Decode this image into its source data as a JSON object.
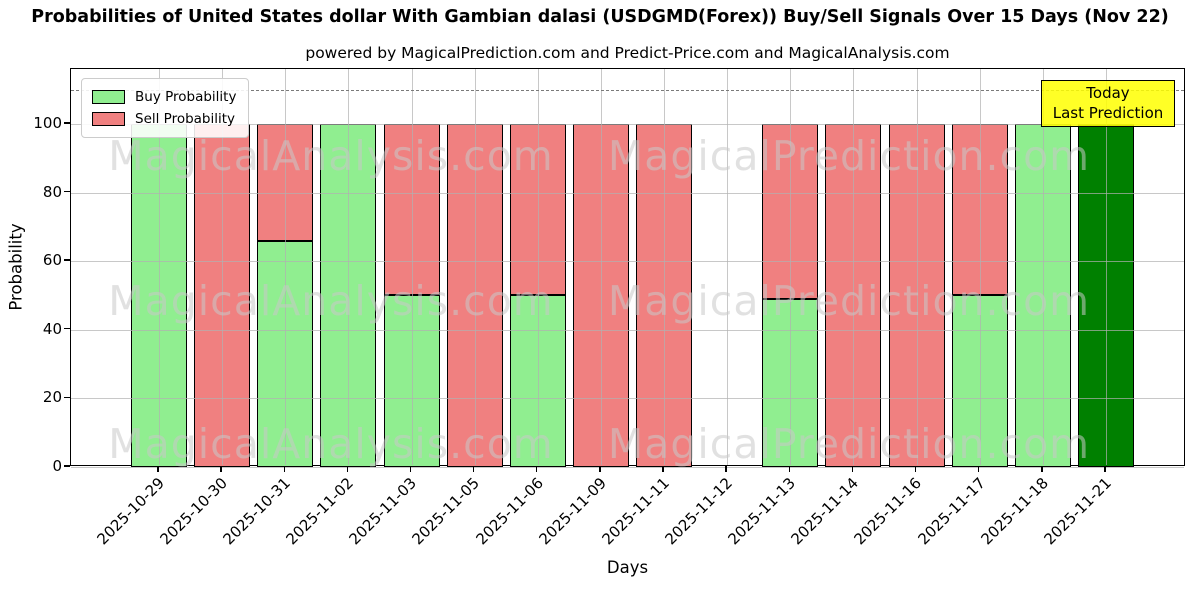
{
  "title": "Probabilities of United States dollar With Gambian dalasi (USDGMD(Forex)) Buy/Sell Signals Over 15 Days (Nov 22)",
  "subtitle": "powered by MagicalPrediction.com and Predict-Price.com and MagicalAnalysis.com",
  "legend": {
    "buy_label": "Buy Probability",
    "sell_label": "Sell Probability"
  },
  "annotation": {
    "line1": "Today",
    "line2": "Last Prediction"
  },
  "watermarks": {
    "left": "MagicalAnalysis.com",
    "right": "MagicalPrediction.com"
  },
  "colors": {
    "buy": "#90EE90",
    "sell": "#F08080",
    "today_bar": "#008000",
    "annotation_bg": "#FFFF00",
    "dashed_line": "#7A7A7A",
    "grid": "#B0B0B0"
  },
  "chart_data": {
    "type": "bar",
    "stacked": true,
    "title": "Probabilities of United States dollar With Gambian dalasi (USDGMD(Forex)) Buy/Sell Signals Over 15 Days (Nov 22)",
    "xlabel": "Days",
    "ylabel": "Probability",
    "ylim": [
      0,
      116
    ],
    "yticks": [
      0,
      20,
      40,
      60,
      80,
      100
    ],
    "grid": true,
    "legend_position": "upper-left",
    "dashed_line_y": 110,
    "categories": [
      "2025-10-29",
      "2025-10-30",
      "2025-10-31",
      "2025-11-02",
      "2025-11-03",
      "2025-11-05",
      "2025-11-06",
      "2025-11-09",
      "2025-11-11",
      "2025-11-12",
      "2025-11-13",
      "2025-11-14",
      "2025-11-16",
      "2025-11-17",
      "2025-11-18",
      "2025-11-21"
    ],
    "series": [
      {
        "name": "Buy Probability",
        "color": "#90EE90",
        "values": [
          100,
          0,
          66,
          100,
          50,
          0,
          50,
          0,
          0,
          null,
          49,
          0,
          0,
          50,
          100,
          100
        ]
      },
      {
        "name": "Sell Probability",
        "color": "#F08080",
        "values": [
          0,
          100,
          34,
          0,
          50,
          100,
          50,
          100,
          100,
          null,
          51,
          100,
          100,
          50,
          0,
          0
        ]
      }
    ],
    "today_bar": {
      "category": "2025-11-21",
      "index": 15,
      "color": "#008000",
      "value": 100
    }
  }
}
